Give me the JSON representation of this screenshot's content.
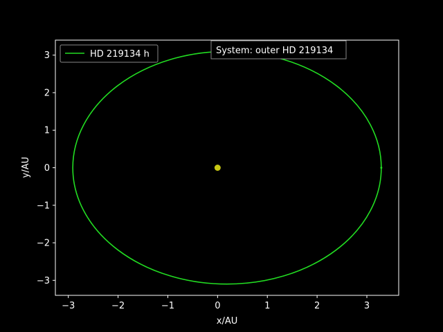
{
  "chart_data": {
    "type": "line",
    "title": "",
    "xlabel": "x/AU",
    "ylabel": "y/AU",
    "xlim": [
      -3.26,
      3.64
    ],
    "ylim": [
      -3.4,
      3.4
    ],
    "xticks": [
      -3,
      -2,
      -1,
      0,
      1,
      2,
      3
    ],
    "yticks": [
      -3,
      -2,
      -1,
      0,
      1,
      2,
      3
    ],
    "xtick_labels": [
      "−3",
      "−2",
      "−1",
      "0",
      "1",
      "2",
      "3"
    ],
    "ytick_labels": [
      "−3",
      "−2",
      "−1",
      "0",
      "1",
      "2",
      "3"
    ],
    "grid": false,
    "background": "#000000",
    "legend": {
      "position": "top-left",
      "entries": [
        "HD 219134 h"
      ]
    },
    "annotation": "System: outer HD 219134",
    "star": {
      "x": 0,
      "y": 0,
      "color": "#c8c814"
    },
    "series": [
      {
        "name": "HD 219134 h",
        "color": "#22dd22",
        "orbit": {
          "center_x": 0.19,
          "center_y": 0,
          "semi_major_x": 3.1,
          "semi_minor_y": 3.1
        },
        "marker": {
          "x": 3.29,
          "y": 0
        }
      }
    ]
  }
}
